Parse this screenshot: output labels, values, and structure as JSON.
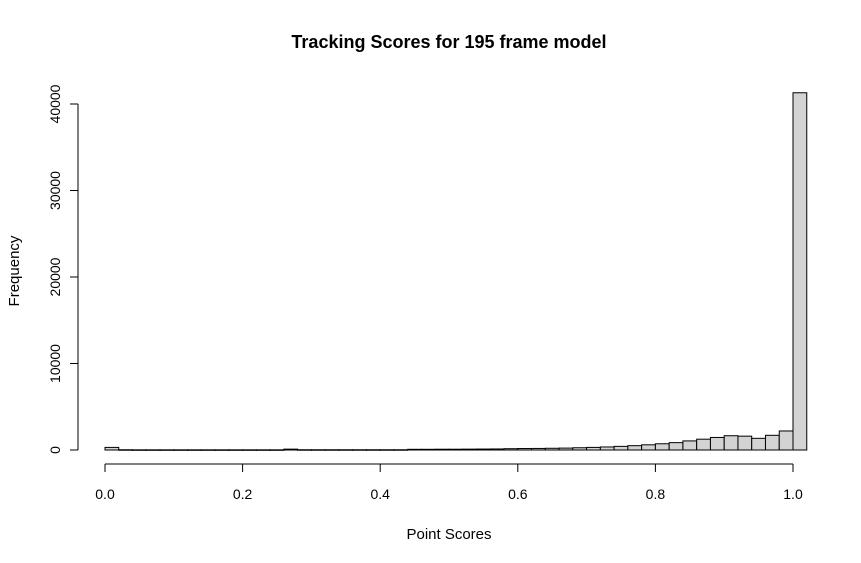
{
  "chart_data": {
    "type": "bar",
    "title": "Tracking Scores for 195 frame model",
    "xlabel": "Point Scores",
    "ylabel": "Frequency",
    "xlim": [
      0,
      1
    ],
    "ylim": [
      0,
      41000
    ],
    "bin_width": 0.02,
    "x_ticks": [
      0.0,
      0.2,
      0.4,
      0.6,
      0.8,
      1.0
    ],
    "x_tick_labels": [
      "0.0",
      "0.2",
      "0.4",
      "0.6",
      "0.8",
      "1.0"
    ],
    "y_ticks": [
      0,
      10000,
      20000,
      30000,
      40000
    ],
    "y_tick_labels": [
      "0",
      "10000",
      "20000",
      "30000",
      "40000"
    ],
    "grid": false,
    "bins": [
      0.0,
      0.02,
      0.04,
      0.06,
      0.08,
      0.1,
      0.12,
      0.14,
      0.16,
      0.18,
      0.2,
      0.22,
      0.24,
      0.26,
      0.28,
      0.3,
      0.32,
      0.34,
      0.36,
      0.38,
      0.4,
      0.42,
      0.44,
      0.46,
      0.48,
      0.5,
      0.52,
      0.54,
      0.56,
      0.58,
      0.6,
      0.62,
      0.64,
      0.66,
      0.68,
      0.7,
      0.72,
      0.74,
      0.76,
      0.78,
      0.8,
      0.82,
      0.84,
      0.86,
      0.88,
      0.9,
      0.92,
      0.94,
      0.96,
      0.98,
      1.0
    ],
    "values": [
      300,
      30,
      20,
      20,
      20,
      20,
      20,
      20,
      20,
      20,
      20,
      20,
      20,
      100,
      30,
      30,
      30,
      30,
      30,
      30,
      30,
      30,
      80,
      80,
      90,
      90,
      100,
      110,
      120,
      150,
      170,
      180,
      200,
      220,
      260,
      300,
      350,
      420,
      500,
      600,
      720,
      850,
      1050,
      1250,
      1450,
      1650,
      1600,
      1350,
      1700,
      2200,
      41300
    ]
  }
}
